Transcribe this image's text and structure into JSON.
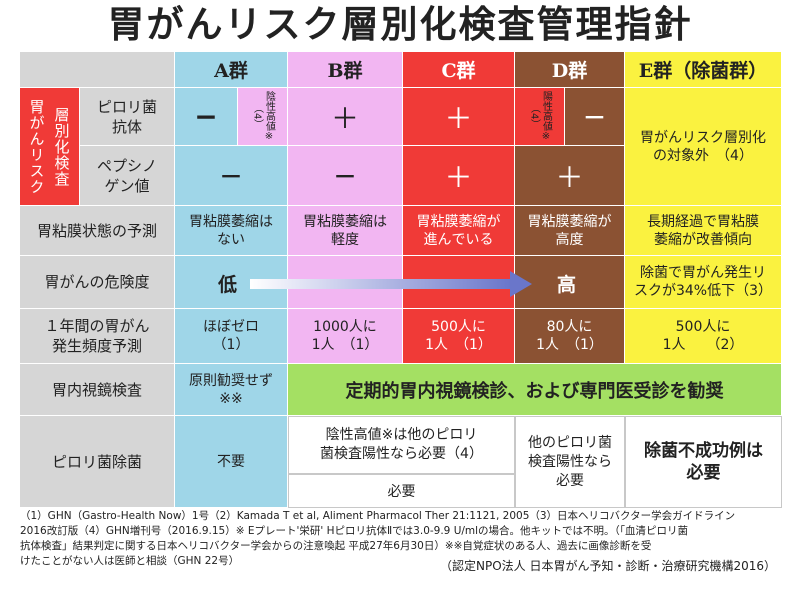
{
  "title": "胃がんリスク層別化検査管理指針",
  "groups": {
    "a": "A群",
    "b": "B群",
    "c": "C群",
    "d": "D群",
    "e": "E群（除菌群）"
  },
  "left_labels": {
    "vertical_a": "胃がんリスク",
    "vertical_b": "層別化検査",
    "pylori_antibody": "ピロリ菌\n抗体",
    "pepsinogen": "ペプシノ\nゲン値",
    "mucosa_prediction": "胃粘膜状態の予測",
    "cancer_risk": "胃がんの危険度",
    "annual_incidence": "１年間の胃がん\n発生頻度予測",
    "endoscopy": "胃内視鏡検査",
    "eradication": "ピロリ菌除菌"
  },
  "pylori_row": {
    "a": "−",
    "a_note": "陰性高値※（4）",
    "b": "＋",
    "c": "＋",
    "d_note": "陽性高値※（4）",
    "d": "−",
    "e": "胃がんリスク層別化\nの対象外　（4）"
  },
  "pepsinogen_row": {
    "a": "−",
    "b": "−",
    "c": "＋",
    "d": "＋"
  },
  "mucosa_row": {
    "a": "胃粘膜萎縮は\nない",
    "b": "胃粘膜萎縮は\n軽度",
    "c": "胃粘膜萎縮が\n進んでいる",
    "d": "胃粘膜萎縮が\n高度",
    "e": "長期経過で胃粘膜\n萎縮が改善傾向"
  },
  "risk_row": {
    "low": "低",
    "high": "高",
    "e": "除菌で胃がん発生リ\nスクが34%低下（3）"
  },
  "incidence_row": {
    "a": "ほぼゼロ\n（1）",
    "b": "1000人に\n1人　（1）",
    "c": "500人に\n1人　（1）",
    "d": "80人に\n1人　（1）",
    "e": "500人に\n1人　　（2）"
  },
  "endoscopy_row": {
    "a": "原則勧奨せず\n※※",
    "rest": "定期的胃内視鏡検診、および専門医受診を勧奨"
  },
  "eradication_row": {
    "a": "不要",
    "b_c_top": "陰性高値※は他のピロリ\n菌検査陽性なら必要（4）",
    "b_c_bottom": "必要",
    "d": "他のピロリ菌\n検査陽性なら\n必要",
    "e": "除菌不成功例は\n必要"
  },
  "footer": {
    "line1": "（1）GHN（Gastro-Health Now）1号（2）Kamada T et al, Aliment Pharmacol Ther 21:1121, 2005（3）日本ヘリコバクター学会ガイドライン",
    "line2": "2016改訂版（4）GHN増刊号（2016.9.15）※ Eプレート'栄研' Hピロリ抗体Ⅱでは3.0-9.9 U/mlの場合。他キットでは不明。（「血清ピロリ菌",
    "line3": "抗体検査」結果判定に関する日本ヘリコバクター学会からの注意喚起 平成27年6月30日）※※自覚症状のある人、過去に画像診断を受",
    "line4": "けたことがない人は医師と相談（GHN 22号）",
    "credit": "（認定NPO法人 日本胃がん予知・診断・治療研究機構2016）"
  },
  "colors": {
    "a": "#9fd6e8",
    "b": "#f2b6f2",
    "c": "#f03a37",
    "d": "#8b5233",
    "e": "#faf240",
    "green": "#a4e063",
    "gray": "#d6d6d6"
  }
}
